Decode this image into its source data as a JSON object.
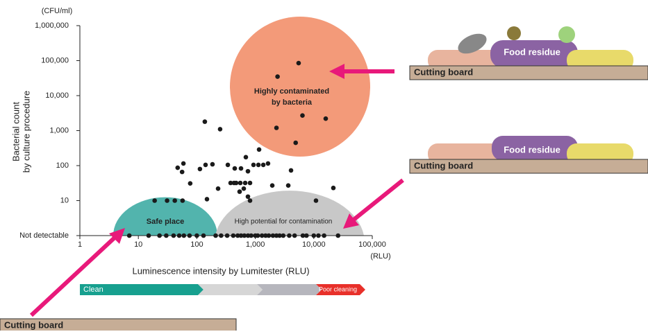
{
  "chart_data": {
    "type": "scatter",
    "y_unit": "(CFU/ml)",
    "x_unit": "(RLU)",
    "ylabel": [
      "Bacterial count",
      "by culture procedure"
    ],
    "xlabel": "Luminescence intensity by Lumitester (RLU)",
    "xscale": "log",
    "yscale": "log",
    "color": "#1a1a1a",
    "xlim": [
      1,
      100000
    ],
    "xticks": [
      1,
      10,
      100,
      {
        "value": 1000,
        "label": "1,000"
      },
      {
        "value": 10000,
        "label": "10,000"
      },
      {
        "value": 100000,
        "label": "100,000"
      }
    ],
    "ylim": [
      1,
      1000000
    ],
    "yticks": [
      {
        "value": 1,
        "label": "Not detectable"
      },
      10,
      100,
      {
        "value": 1000,
        "label": "1,000"
      },
      {
        "value": 10000,
        "label": "10,000"
      },
      {
        "value": 100000,
        "label": "100,000"
      },
      {
        "value": 1000000,
        "label": "1,000,000"
      }
    ],
    "x": [
      2400,
      5500,
      2300,
      6400,
      16000,
      4900,
      137,
      250,
      19,
      31,
      42,
      57,
      47,
      59,
      56,
      77,
      113,
      141,
      185,
      149,
      231,
      339,
      433,
      445,
      569,
      748,
      931,
      1130,
      1370,
      1650,
      689,
      1160,
      378,
      470,
      554,
      671,
      812,
      539,
      635,
      748,
      812,
      1950,
      3660,
      4080,
      10900,
      21600,
      7,
      15,
      23,
      30,
      40,
      50,
      60,
      75,
      100,
      130,
      210,
      260,
      330,
      420,
      500,
      570,
      650,
      750,
      850,
      1000,
      1100,
      1300,
      1500,
      1700,
      2000,
      2300,
      2600,
      3000,
      3800,
      4700,
      6500,
      7500,
      10000,
      12000,
      15000,
      26000
    ],
    "values": [
      35000,
      85000,
      1200,
      2700,
      2200,
      450,
      1800,
      1100,
      10,
      10,
      10,
      10,
      87,
      115,
      66,
      31,
      80,
      105,
      109,
      11,
      22,
      105,
      32,
      83,
      83,
      69,
      105,
      105,
      105,
      115,
      174,
      288,
      32,
      32,
      32,
      32,
      32,
      18,
      22,
      13,
      10,
      27,
      27,
      73,
      10,
      23,
      1,
      1,
      1,
      1,
      1,
      1,
      1,
      1,
      1,
      1,
      1,
      1,
      1,
      1,
      1,
      1,
      1,
      1,
      1,
      1,
      1,
      1,
      1,
      1,
      1,
      1,
      1,
      1,
      1,
      1,
      1,
      1,
      1,
      1,
      1,
      1
    ],
    "annotations": [
      "Highly contaminated",
      "by bacteria",
      "Safe place",
      "High potential for contamination"
    ],
    "scale_bar": [
      "Clean",
      "Poor cleaning"
    ]
  },
  "illustrations": {
    "top_residue": "Food residue",
    "top_board": "Cutting board",
    "middle_residue": "Food residue",
    "middle_board": "Cutting board",
    "bottom_board": "Cutting board"
  }
}
